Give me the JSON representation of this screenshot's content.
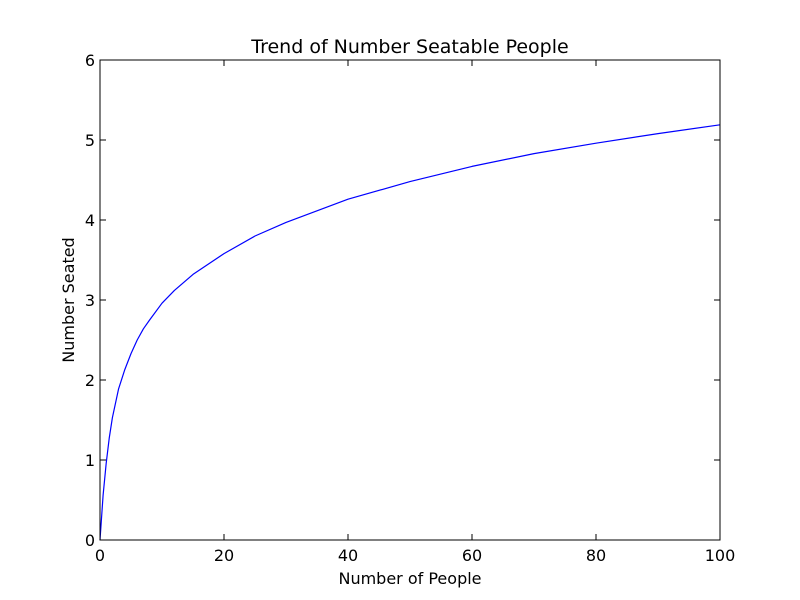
{
  "chart_data": {
    "type": "line",
    "title": "Trend of Number Seatable People",
    "xlabel": "Number of People",
    "ylabel": "Number Seated",
    "xlim": [
      0,
      100
    ],
    "ylim": [
      0,
      6
    ],
    "xticks": [
      "0",
      "20",
      "40",
      "60",
      "80",
      "100"
    ],
    "yticks": [
      "0",
      "1",
      "2",
      "3",
      "4",
      "5",
      "6"
    ],
    "grid": false,
    "legend": "none",
    "series": [
      {
        "color": "#0000ff",
        "x": [
          0,
          0.5,
          1,
          1.5,
          2,
          3,
          4,
          5,
          6,
          7,
          8,
          10,
          12,
          15,
          20,
          25,
          30,
          40,
          50,
          60,
          70,
          80,
          90,
          100
        ],
        "y": [
          0,
          0.56,
          0.96,
          1.28,
          1.53,
          1.89,
          2.13,
          2.33,
          2.5,
          2.64,
          2.75,
          2.96,
          3.12,
          3.32,
          3.58,
          3.8,
          3.97,
          4.26,
          4.48,
          4.67,
          4.83,
          4.96,
          5.08,
          5.19
        ]
      }
    ]
  }
}
